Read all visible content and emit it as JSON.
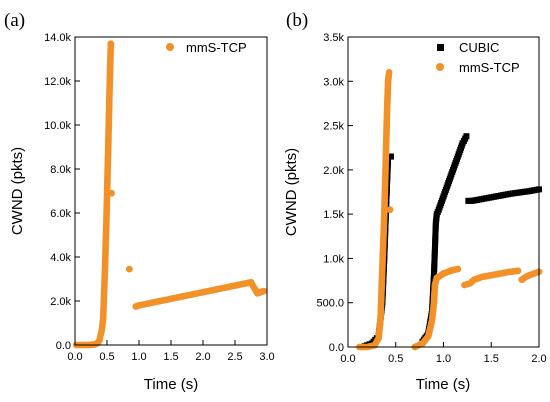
{
  "figure": {
    "panel_a_tag": "(a)",
    "panel_b_tag": "(b)"
  },
  "colors": {
    "mms_tcp": "#f39129",
    "cubic": "#000000"
  },
  "chart_data": [
    {
      "type": "scatter",
      "panel": "(a)",
      "xlabel": "Time (s)",
      "ylabel": "CWND (pkts)",
      "xlim": [
        0.0,
        3.0
      ],
      "ylim": [
        0,
        14000
      ],
      "xticks": [
        0.0,
        0.5,
        1.0,
        1.5,
        2.0,
        2.5,
        3.0
      ],
      "xtick_labels": [
        "0.0",
        "0.5",
        "1.0",
        "1.5",
        "2.0",
        "2.5",
        "3.0"
      ],
      "yticks": [
        0,
        2000,
        4000,
        6000,
        8000,
        10000,
        12000,
        14000
      ],
      "ytick_labels": [
        "0.0",
        "2.0k",
        "4.0k",
        "6.0k",
        "8.0k",
        "10.0k",
        "12.0k",
        "14.0k"
      ],
      "grid": false,
      "legend_position": "top-right",
      "series": [
        {
          "name": "mmS-TCP",
          "color": "#f39129",
          "marker": "circle",
          "points": [
            [
              0.02,
              0
            ],
            [
              0.1,
              0
            ],
            [
              0.2,
              0
            ],
            [
              0.3,
              20
            ],
            [
              0.35,
              80
            ],
            [
              0.38,
              200
            ],
            [
              0.4,
              450
            ],
            [
              0.42,
              700
            ],
            [
              0.44,
              1200
            ],
            [
              0.45,
              2000
            ],
            [
              0.46,
              2800
            ],
            [
              0.47,
              3600
            ],
            [
              0.48,
              4600
            ],
            [
              0.49,
              5600
            ],
            [
              0.5,
              6700
            ],
            [
              0.51,
              7900
            ],
            [
              0.52,
              9100
            ],
            [
              0.53,
              10400
            ],
            [
              0.54,
              11600
            ],
            [
              0.55,
              12700
            ],
            [
              0.56,
              13700
            ],
            [
              0.57,
              6900
            ],
            [
              0.85,
              3450
            ],
            [
              0.95,
              1750
            ],
            [
              1.0,
              1800
            ],
            [
              1.2,
              1920
            ],
            [
              1.4,
              2040
            ],
            [
              1.6,
              2160
            ],
            [
              1.8,
              2280
            ],
            [
              2.0,
              2400
            ],
            [
              2.2,
              2520
            ],
            [
              2.4,
              2640
            ],
            [
              2.6,
              2760
            ],
            [
              2.75,
              2850
            ],
            [
              2.8,
              2600
            ],
            [
              2.85,
              2350
            ],
            [
              2.9,
              2400
            ],
            [
              2.95,
              2450
            ]
          ]
        }
      ]
    },
    {
      "type": "scatter",
      "panel": "(b)",
      "xlabel": "Time (s)",
      "ylabel": "CWND (pkts)",
      "xlim": [
        0.0,
        2.0
      ],
      "ylim": [
        0,
        3500
      ],
      "xticks": [
        0.0,
        0.5,
        1.0,
        1.5,
        2.0
      ],
      "xtick_labels": [
        "0.0",
        "0.5",
        "1.0",
        "1.5",
        "2.0"
      ],
      "yticks": [
        0,
        500,
        1000,
        1500,
        2000,
        2500,
        3000,
        3500
      ],
      "ytick_labels": [
        "0.0",
        "500.0",
        "1.0k",
        "1.5k",
        "2.0k",
        "2.5k",
        "3.0k",
        "3.5k"
      ],
      "grid": false,
      "legend_position": "top-right",
      "series": [
        {
          "name": "CUBIC",
          "color": "#000000",
          "marker": "square",
          "points": [
            [
              0.15,
              0
            ],
            [
              0.25,
              40
            ],
            [
              0.32,
              120
            ],
            [
              0.36,
              500
            ],
            [
              0.38,
              1000
            ],
            [
              0.4,
              1600
            ],
            [
              0.42,
              2150
            ],
            [
              0.45,
              2150
            ],
            [
              0.78,
              60
            ],
            [
              0.84,
              150
            ],
            [
              0.88,
              400
            ],
            [
              0.9,
              820
            ],
            [
              0.91,
              1100
            ],
            [
              0.92,
              1400
            ],
            [
              0.93,
              1500
            ],
            [
              0.95,
              1550
            ],
            [
              1.0,
              1700
            ],
            [
              1.05,
              1850
            ],
            [
              1.1,
              2000
            ],
            [
              1.15,
              2150
            ],
            [
              1.2,
              2300
            ],
            [
              1.24,
              2380
            ],
            [
              1.26,
              1650
            ],
            [
              1.3,
              1650
            ],
            [
              1.4,
              1670
            ],
            [
              1.5,
              1690
            ],
            [
              1.6,
              1710
            ],
            [
              1.7,
              1730
            ],
            [
              1.8,
              1745
            ],
            [
              1.9,
              1760
            ],
            [
              2.0,
              1780
            ]
          ]
        },
        {
          "name": "mmS-TCP",
          "color": "#f39129",
          "marker": "circle",
          "points": [
            [
              0.12,
              0
            ],
            [
              0.2,
              0
            ],
            [
              0.28,
              20
            ],
            [
              0.32,
              100
            ],
            [
              0.34,
              300
            ],
            [
              0.35,
              600
            ],
            [
              0.36,
              900
            ],
            [
              0.37,
              1200
            ],
            [
              0.38,
              1500
            ],
            [
              0.39,
              1900
            ],
            [
              0.4,
              2300
            ],
            [
              0.41,
              2700
            ],
            [
              0.42,
              3000
            ],
            [
              0.43,
              3100
            ],
            [
              0.44,
              1550
            ],
            [
              0.7,
              0
            ],
            [
              0.78,
              40
            ],
            [
              0.84,
              120
            ],
            [
              0.88,
              300
            ],
            [
              0.9,
              500
            ],
            [
              0.91,
              700
            ],
            [
              0.93,
              780
            ],
            [
              0.96,
              800
            ],
            [
              1.0,
              830
            ],
            [
              1.05,
              850
            ],
            [
              1.1,
              870
            ],
            [
              1.15,
              880
            ],
            [
              1.22,
              700
            ],
            [
              1.28,
              720
            ],
            [
              1.32,
              760
            ],
            [
              1.4,
              790
            ],
            [
              1.5,
              810
            ],
            [
              1.6,
              830
            ],
            [
              1.7,
              850
            ],
            [
              1.78,
              860
            ],
            [
              1.82,
              760
            ],
            [
              1.86,
              790
            ],
            [
              1.9,
              810
            ],
            [
              1.95,
              830
            ],
            [
              2.0,
              850
            ]
          ]
        }
      ]
    }
  ]
}
